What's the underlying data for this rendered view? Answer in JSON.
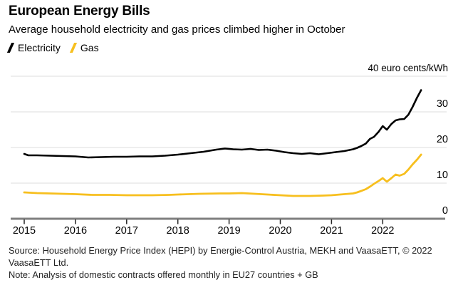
{
  "header": {
    "title": "European Energy Bills",
    "subtitle": "Average household electricity and gas prices climbed higher in October"
  },
  "legend": [
    {
      "label": "Electricity",
      "color": "#000000"
    },
    {
      "label": "Gas",
      "color": "#F7BF1E"
    }
  ],
  "chart_data": {
    "type": "line",
    "title": "European Energy Bills",
    "subtitle": "Average household electricity and gas prices climbed higher in October",
    "unit_label": "40 euro cents/kWh",
    "ylabel": "euro cents/kWh",
    "ylim": [
      0,
      40
    ],
    "y_ticks": [
      0,
      10,
      20,
      30
    ],
    "x_ticks": [
      2015,
      2016,
      2017,
      2018,
      2019,
      2020,
      2021,
      2022
    ],
    "xlim": [
      2015.0,
      2022.83
    ],
    "grid": true,
    "legend_position": "top-left",
    "gridline_color": "#DCDCDC",
    "baseline_color": "#7F7F7F",
    "series": [
      {
        "name": "Electricity",
        "color": "#000000",
        "x": [
          2015.0,
          2015.08,
          2015.25,
          2015.5,
          2015.75,
          2016.0,
          2016.25,
          2016.5,
          2016.75,
          2017.0,
          2017.25,
          2017.5,
          2017.75,
          2018.0,
          2018.25,
          2018.5,
          2018.75,
          2018.92,
          2019.08,
          2019.25,
          2019.42,
          2019.58,
          2019.75,
          2019.92,
          2020.08,
          2020.25,
          2020.42,
          2020.58,
          2020.75,
          2020.92,
          2021.08,
          2021.25,
          2021.42,
          2021.5,
          2021.58,
          2021.67,
          2021.75,
          2021.83,
          2021.92,
          2022.0,
          2022.08,
          2022.17,
          2022.25,
          2022.33,
          2022.42,
          2022.5,
          2022.58,
          2022.67,
          2022.75
        ],
        "values": [
          18.2,
          17.8,
          17.8,
          17.7,
          17.6,
          17.5,
          17.2,
          17.3,
          17.4,
          17.4,
          17.5,
          17.5,
          17.7,
          18.0,
          18.4,
          18.8,
          19.4,
          19.7,
          19.5,
          19.4,
          19.6,
          19.3,
          19.4,
          19.1,
          18.7,
          18.4,
          18.2,
          18.4,
          18.1,
          18.4,
          18.7,
          19.0,
          19.5,
          19.9,
          20.4,
          21.1,
          22.4,
          23.0,
          24.4,
          26.0,
          25.0,
          26.6,
          27.6,
          27.9,
          28.0,
          29.2,
          31.3,
          34.0,
          36.1
        ]
      },
      {
        "name": "Gas",
        "color": "#F7BF1E",
        "x": [
          2015.0,
          2015.25,
          2015.5,
          2015.75,
          2016.0,
          2016.33,
          2016.67,
          2017.0,
          2017.5,
          2017.83,
          2018.0,
          2018.42,
          2018.83,
          2019.0,
          2019.25,
          2019.5,
          2019.75,
          2020.0,
          2020.25,
          2020.58,
          2020.83,
          2021.0,
          2021.25,
          2021.42,
          2021.5,
          2021.58,
          2021.67,
          2021.75,
          2021.83,
          2021.92,
          2022.0,
          2022.08,
          2022.17,
          2022.25,
          2022.33,
          2022.42,
          2022.5,
          2022.58,
          2022.67,
          2022.75
        ],
        "values": [
          7.4,
          7.2,
          7.1,
          7.0,
          6.9,
          6.7,
          6.7,
          6.6,
          6.6,
          6.7,
          6.8,
          7.0,
          7.1,
          7.1,
          7.2,
          7.0,
          6.8,
          6.6,
          6.4,
          6.4,
          6.5,
          6.6,
          6.9,
          7.1,
          7.4,
          7.8,
          8.3,
          9.0,
          9.8,
          10.6,
          11.4,
          10.4,
          11.4,
          12.4,
          12.1,
          12.6,
          13.8,
          15.2,
          16.6,
          18.0
        ]
      }
    ]
  },
  "footer": {
    "source": "Source: Household Energy Price Index (HEPI) by Energie-Control Austria, MEKH and VaasaETT, © 2022 VaasaETT Ltd.",
    "note": "Note: Analysis of domestic contracts offered monthly in EU27 countries + GB"
  }
}
